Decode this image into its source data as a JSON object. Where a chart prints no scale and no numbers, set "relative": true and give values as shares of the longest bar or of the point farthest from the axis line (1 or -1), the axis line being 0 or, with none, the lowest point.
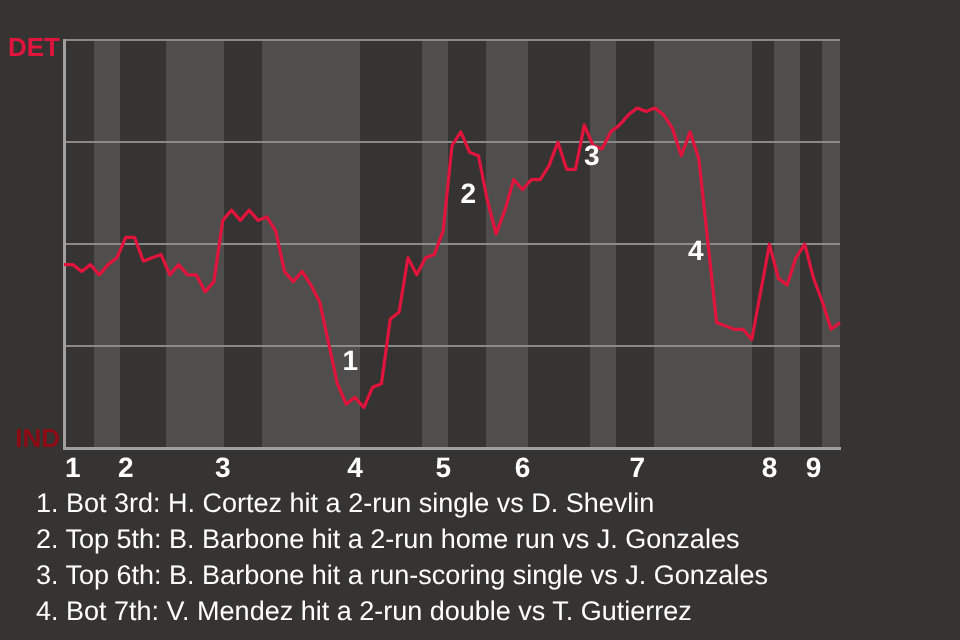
{
  "chart_data": {
    "type": "line",
    "relative": true,
    "categories": [
      null,
      "1",
      null,
      null,
      null,
      null,
      null,
      "2",
      null,
      null,
      null,
      null,
      null,
      null,
      null,
      null,
      null,
      null,
      "3",
      null,
      null,
      null,
      null,
      null,
      null,
      null,
      null,
      null,
      null,
      null,
      null,
      null,
      null,
      "4",
      null,
      null,
      null,
      null,
      null,
      null,
      null,
      null,
      null,
      "5",
      null,
      null,
      null,
      null,
      null,
      null,
      null,
      null,
      "6",
      null,
      null,
      null,
      null,
      null,
      null,
      null,
      null,
      null,
      null,
      null,
      null,
      "7",
      null,
      null,
      null,
      null,
      null,
      null,
      null,
      null,
      null,
      null,
      null,
      null,
      null,
      null,
      "8",
      null,
      null,
      null,
      null,
      "9",
      null,
      null,
      null
    ],
    "grid": "y",
    "marker": "none",
    "line_style": "solid",
    "series": [
      {
        "color": "#e0143c",
        "values": [
          0.54,
          0.54,
          0.52,
          0.54,
          0.51,
          0.54,
          0.56,
          0.62,
          0.62,
          0.55,
          0.56,
          0.57,
          0.51,
          0.54,
          0.51,
          0.51,
          0.46,
          0.49,
          0.67,
          0.7,
          0.67,
          0.7,
          0.67,
          0.68,
          0.64,
          0.52,
          0.49,
          0.52,
          0.48,
          0.43,
          0.31,
          0.19,
          0.13,
          0.15,
          0.12,
          0.18,
          0.19,
          0.38,
          0.4,
          0.56,
          0.51,
          0.56,
          0.57,
          0.64,
          0.89,
          0.93,
          0.87,
          0.86,
          0.73,
          0.63,
          0.7,
          0.79,
          0.76,
          0.79,
          0.79,
          0.83,
          0.9,
          0.82,
          0.82,
          0.95,
          0.89,
          0.88,
          0.93,
          0.95,
          0.98,
          1,
          0.99,
          1,
          0.98,
          0.94,
          0.86,
          0.93,
          0.85,
          0.61,
          0.37,
          0.36,
          0.35,
          0.35,
          0.32,
          0.46,
          0.6,
          0.5,
          0.48,
          0.56,
          0.6,
          0.5,
          0.43,
          0.35,
          0.37
        ]
      }
    ],
    "annotations": [
      "DET",
      "IND",
      "1",
      "2",
      "3",
      "4",
      "1. Bot 3rd: H. Cortez hit a 2-run single vs D. Shevlin",
      "2. Top 5th: B. Barbone hit a 2-run home run vs J. Gonzales",
      "3. Top 6th: B. Barbone hit a run-scoring single vs J. Gonzales",
      "4. Bot 7th: V. Mendez hit a 2-run double vs T. Gutierrez"
    ]
  }
}
